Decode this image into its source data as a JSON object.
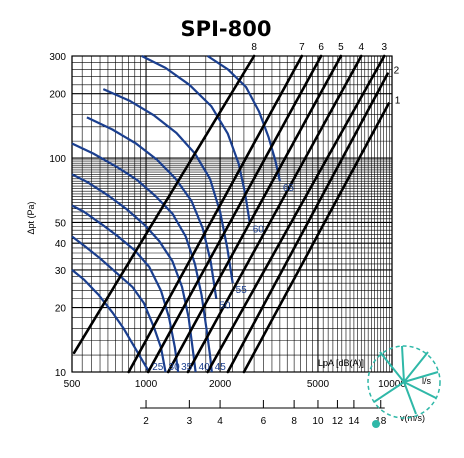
{
  "chart_data": {
    "type": "line",
    "title": "SPI-800",
    "xlabel": "l/s",
    "x_unit_prefix": "1000",
    "ylabel": "Δpt (Pa)",
    "x_scale": "log",
    "y_scale": "log",
    "xlim": [
      500,
      10000
    ],
    "ylim": [
      10,
      300
    ],
    "x_tick_labels": [
      "500",
      "1000",
      "2000",
      "5000",
      "10000"
    ],
    "y_tick_labels": [
      "10",
      "20",
      "30",
      "40",
      "50",
      "100",
      "200",
      "300"
    ],
    "velocity_axis": {
      "label": "v(m/s)",
      "ticks": [
        "2",
        "3",
        "4",
        "6",
        "8",
        "10",
        "12",
        "14",
        "18"
      ],
      "ticks_v": [
        2,
        3,
        4,
        6,
        8,
        10,
        12,
        14,
        18
      ]
    },
    "sound_label": "LpA [dB(A)]",
    "grid": true,
    "damper_lines": [
      {
        "name": "1",
        "points": [
          [
            2500,
            10
          ],
          [
            9700,
            180
          ]
        ]
      },
      {
        "name": "2",
        "points": [
          [
            2150,
            10
          ],
          [
            9600,
            248
          ]
        ]
      },
      {
        "name": "3",
        "points": [
          [
            1780,
            10
          ],
          [
            9300,
            300
          ]
        ]
      },
      {
        "name": "4",
        "points": [
          [
            1480,
            10
          ],
          [
            7500,
            300
          ]
        ]
      },
      {
        "name": "5",
        "points": [
          [
            1230,
            10
          ],
          [
            6200,
            300
          ]
        ]
      },
      {
        "name": "6",
        "points": [
          [
            1020,
            10
          ],
          [
            5150,
            300
          ]
        ]
      },
      {
        "name": "7",
        "points": [
          [
            850,
            10
          ],
          [
            4300,
            300
          ]
        ]
      },
      {
        "name": "8",
        "points": [
          [
            510,
            12.3
          ],
          [
            2750,
            300
          ]
        ]
      }
    ],
    "sound_curves": [
      {
        "name": "25",
        "points": [
          [
            500,
            30
          ],
          [
            560,
            27
          ],
          [
            640,
            23
          ],
          [
            730,
            19
          ],
          [
            810,
            16
          ],
          [
            900,
            13
          ],
          [
            980,
            11
          ],
          [
            1030,
            10
          ]
        ]
      },
      {
        "name": "30",
        "points": [
          [
            500,
            43
          ],
          [
            560,
            39
          ],
          [
            650,
            34
          ],
          [
            760,
            29
          ],
          [
            880,
            25
          ],
          [
            980,
            21
          ],
          [
            1080,
            16
          ],
          [
            1150,
            13
          ],
          [
            1200,
            10
          ]
        ]
      },
      {
        "name": "35",
        "points": [
          [
            500,
            60
          ],
          [
            560,
            56
          ],
          [
            660,
            49
          ],
          [
            770,
            43
          ],
          [
            900,
            37
          ],
          [
            1030,
            31
          ],
          [
            1150,
            24
          ],
          [
            1240,
            18
          ],
          [
            1310,
            13
          ],
          [
            1350,
            10
          ]
        ]
      },
      {
        "name": "40",
        "points": [
          [
            500,
            84
          ],
          [
            580,
            77
          ],
          [
            700,
            67
          ],
          [
            830,
            58
          ],
          [
            980,
            49
          ],
          [
            1130,
            41
          ],
          [
            1280,
            33
          ],
          [
            1400,
            25
          ],
          [
            1490,
            18
          ],
          [
            1560,
            12
          ],
          [
            1590,
            10
          ]
        ]
      },
      {
        "name": "45",
        "points": [
          [
            500,
            117
          ],
          [
            610,
            105
          ],
          [
            760,
            91
          ],
          [
            920,
            79
          ],
          [
            1100,
            66
          ],
          [
            1280,
            55
          ],
          [
            1450,
            43
          ],
          [
            1580,
            32
          ],
          [
            1680,
            23
          ],
          [
            1760,
            16
          ],
          [
            1820,
            12
          ],
          [
            1850,
            10
          ]
        ]
      },
      {
        "name": "50",
        "points": [
          [
            575,
            155
          ],
          [
            730,
            136
          ],
          [
            910,
            117
          ],
          [
            1110,
            98
          ],
          [
            1320,
            80
          ],
          [
            1530,
            63
          ],
          [
            1700,
            47
          ],
          [
            1830,
            33
          ],
          [
            1930,
            22
          ]
        ]
      },
      {
        "name": "55",
        "points": [
          [
            670,
            210
          ],
          [
            860,
            185
          ],
          [
            1080,
            158
          ],
          [
            1330,
            131
          ],
          [
            1580,
            105
          ],
          [
            1820,
            80
          ],
          [
            2000,
            56
          ],
          [
            2140,
            38
          ],
          [
            2250,
            26
          ]
        ]
      },
      {
        "name": "60",
        "points": [
          [
            960,
            300
          ],
          [
            1200,
            264
          ],
          [
            1500,
            220
          ],
          [
            1840,
            175
          ],
          [
            2150,
            130
          ],
          [
            2380,
            94
          ],
          [
            2530,
            68
          ],
          [
            2640,
            50
          ]
        ]
      },
      {
        "name": "65",
        "points": [
          [
            1780,
            300
          ],
          [
            2150,
            260
          ],
          [
            2550,
            215
          ],
          [
            2880,
            165
          ],
          [
            3150,
            125
          ],
          [
            3350,
            98
          ],
          [
            3500,
            78
          ]
        ]
      }
    ]
  }
}
